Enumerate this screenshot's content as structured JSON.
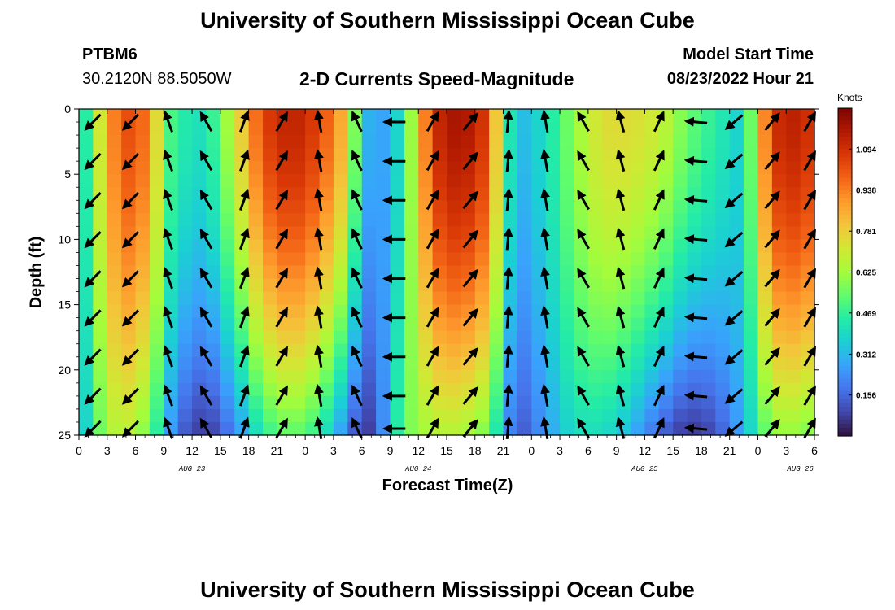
{
  "header": {
    "title_top": "University of Southern Mississippi Ocean Cube",
    "station": "PTBM6",
    "coordinates": "30.2120N  88.5050W",
    "plot_title": "2-D Currents Speed-Magnitude",
    "model_start_label": "Model Start Time",
    "model_start_value": "08/23/2022 Hour 21",
    "title_bottom": "University of Southern Mississippi Ocean Cube"
  },
  "colorbar": {
    "unit": "Knots",
    "ticks": [
      "0.156",
      "0.312",
      "0.469",
      "0.625",
      "0.781",
      "0.938",
      "1.094"
    ],
    "tick_values": [
      0.156,
      0.312,
      0.469,
      0.625,
      0.781,
      0.938,
      1.094
    ],
    "range": [
      0,
      1.25
    ],
    "palette": [
      "#30123b",
      "#4145ab",
      "#4675ed",
      "#39a2fc",
      "#1bcfd4",
      "#24eca6",
      "#61fc6c",
      "#a4fc3b",
      "#d1e834",
      "#f3c63a",
      "#fe9b2d",
      "#f36315",
      "#d93806",
      "#b11901",
      "#7a0403"
    ]
  },
  "chart_data": {
    "type": "heatmap",
    "title": "2-D Currents Speed-Magnitude",
    "xlabel": "Forecast Time(Z)",
    "ylabel": "Depth (ft)",
    "x_tick_labels": [
      "0",
      "3",
      "6",
      "9",
      "12",
      "15",
      "18",
      "21",
      "0",
      "3",
      "6",
      "9",
      "12",
      "15",
      "18",
      "21",
      "0",
      "3",
      "6",
      "9",
      "12",
      "15",
      "18",
      "21",
      "0",
      "3",
      "6"
    ],
    "x_tick_hours": [
      0,
      3,
      6,
      9,
      12,
      15,
      18,
      21,
      24,
      27,
      30,
      33,
      36,
      39,
      42,
      45,
      48,
      51,
      54,
      57,
      60,
      63,
      66,
      69,
      72,
      75,
      78
    ],
    "x_range_hours": [
      0,
      78
    ],
    "date_labels": [
      "AUG 23",
      "AUG 24",
      "AUG 25",
      "AUG 26"
    ],
    "date_label_hours": [
      12,
      36,
      60,
      76.5
    ],
    "y_tick_labels": [
      "0",
      "5",
      "10",
      "15",
      "20",
      "25"
    ],
    "y_tick_values": [
      0,
      5,
      10,
      15,
      20,
      25
    ],
    "ylim": [
      25,
      0
    ],
    "speed_knots_profile": [
      {
        "hour": 0,
        "surface": 0.3,
        "bottom": 0.25
      },
      {
        "hour": 1.5,
        "surface": 0.6,
        "bottom": 0.5
      },
      {
        "hour": 4.5,
        "surface": 1.05,
        "bottom": 0.7
      },
      {
        "hour": 7.5,
        "surface": 0.95,
        "bottom": 0.55
      },
      {
        "hour": 9,
        "surface": 0.55,
        "bottom": 0.35
      },
      {
        "hour": 10.5,
        "surface": 0.45,
        "bottom": 0.15
      },
      {
        "hour": 13.5,
        "surface": 0.4,
        "bottom": 0.05
      },
      {
        "hour": 16.5,
        "surface": 0.7,
        "bottom": 0.2
      },
      {
        "hour": 19.5,
        "surface": 1.05,
        "bottom": 0.45
      },
      {
        "hour": 22.5,
        "surface": 1.15,
        "bottom": 0.55
      },
      {
        "hour": 25.5,
        "surface": 1.05,
        "bottom": 0.45
      },
      {
        "hour": 28.5,
        "surface": 0.8,
        "bottom": 0.2
      },
      {
        "hour": 30,
        "surface": 0.35,
        "bottom": 0.05
      },
      {
        "hour": 31.5,
        "surface": 0.25,
        "bottom": 0.1
      },
      {
        "hour": 33,
        "surface": 0.3,
        "bottom": 0.35
      },
      {
        "hour": 34.5,
        "surface": 0.45,
        "bottom": 0.55
      },
      {
        "hour": 37.5,
        "surface": 1.1,
        "bottom": 0.65
      },
      {
        "hour": 40.5,
        "surface": 1.2,
        "bottom": 0.65
      },
      {
        "hour": 43.5,
        "surface": 1.05,
        "bottom": 0.55
      },
      {
        "hour": 45,
        "surface": 0.55,
        "bottom": 0.3
      },
      {
        "hour": 46.5,
        "surface": 0.3,
        "bottom": 0.1
      },
      {
        "hour": 49.5,
        "surface": 0.4,
        "bottom": 0.25
      },
      {
        "hour": 52.5,
        "surface": 0.6,
        "bottom": 0.4
      },
      {
        "hour": 55.5,
        "surface": 0.75,
        "bottom": 0.4
      },
      {
        "hour": 58.5,
        "surface": 0.75,
        "bottom": 0.3
      },
      {
        "hour": 61.5,
        "surface": 0.7,
        "bottom": 0.15
      },
      {
        "hour": 64.5,
        "surface": 0.55,
        "bottom": 0.05
      },
      {
        "hour": 67.5,
        "surface": 0.45,
        "bottom": 0.1
      },
      {
        "hour": 70.5,
        "surface": 0.35,
        "bottom": 0.3
      },
      {
        "hour": 72,
        "surface": 0.75,
        "bottom": 0.45
      },
      {
        "hour": 73.5,
        "surface": 1.1,
        "bottom": 0.6
      },
      {
        "hour": 76.5,
        "surface": 1.15,
        "bottom": 0.6
      },
      {
        "hour": 78,
        "surface": 1.05,
        "bottom": 0.55
      }
    ],
    "current_arrows_hours": [
      1.5,
      5.5,
      9.5,
      13.5,
      17.5,
      21.5,
      25.5,
      29.5,
      33.5,
      37.5,
      41.5,
      45.5,
      49.5,
      53.5,
      57.5,
      61.5,
      65.5,
      69.5,
      73.5,
      77.5
    ],
    "current_arrows_depths_ft": [
      1,
      4,
      7,
      10,
      13,
      16,
      19,
      22,
      24.5
    ],
    "current_direction_deg": [
      225,
      225,
      340,
      330,
      20,
      30,
      350,
      335,
      270,
      30,
      40,
      5,
      350,
      330,
      345,
      25,
      275,
      230,
      40,
      30
    ],
    "legend": false,
    "grid": false
  }
}
